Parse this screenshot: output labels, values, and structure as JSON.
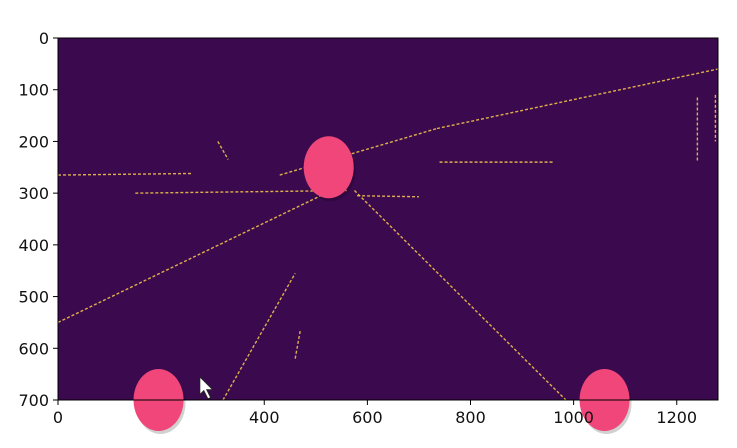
{
  "colors": {
    "background": "#3b0a4e",
    "edge": "#f0c14b",
    "marker": "#f0467a",
    "cursor": "#ffffff"
  },
  "chart_data": {
    "type": "image",
    "xlim": [
      0,
      1280
    ],
    "ylim": [
      700,
      0
    ],
    "x_ticks": [
      {
        "value": 0,
        "label": "0"
      },
      {
        "value": 400,
        "label": "400"
      },
      {
        "value": 600,
        "label": "600"
      },
      {
        "value": 800,
        "label": "800"
      },
      {
        "value": 1000,
        "label": "1000"
      },
      {
        "value": 1200,
        "label": "1200"
      }
    ],
    "y_ticks": [
      {
        "value": 0,
        "label": "0"
      },
      {
        "value": 100,
        "label": "100"
      },
      {
        "value": 200,
        "label": "200"
      },
      {
        "value": 300,
        "label": "300"
      },
      {
        "value": 400,
        "label": "400"
      },
      {
        "value": 500,
        "label": "500"
      },
      {
        "value": 600,
        "label": "600"
      },
      {
        "value": 700,
        "label": "700"
      }
    ],
    "markers": [
      {
        "x": 525,
        "y": 250
      },
      {
        "x": 195,
        "y": 700
      },
      {
        "x": 1060,
        "y": 700
      }
    ],
    "edge_segments": [
      {
        "x1": 0,
        "y1": 550,
        "x2": 520,
        "y2": 300
      },
      {
        "x1": 575,
        "y1": 295,
        "x2": 985,
        "y2": 700
      },
      {
        "x1": 320,
        "y1": 700,
        "x2": 460,
        "y2": 455
      },
      {
        "x1": 0,
        "y1": 265,
        "x2": 260,
        "y2": 262
      },
      {
        "x1": 430,
        "y1": 265,
        "x2": 735,
        "y2": 175
      },
      {
        "x1": 735,
        "y1": 175,
        "x2": 1280,
        "y2": 60
      },
      {
        "x1": 150,
        "y1": 300,
        "x2": 560,
        "y2": 295
      },
      {
        "x1": 1240,
        "y1": 115,
        "x2": 1240,
        "y2": 240
      },
      {
        "x1": 1275,
        "y1": 110,
        "x2": 1275,
        "y2": 200
      },
      {
        "x1": 580,
        "y1": 305,
        "x2": 700,
        "y2": 307
      },
      {
        "x1": 460,
        "y1": 620,
        "x2": 470,
        "y2": 565
      },
      {
        "x1": 310,
        "y1": 200,
        "x2": 330,
        "y2": 235
      },
      {
        "x1": 740,
        "y1": 240,
        "x2": 960,
        "y2": 240
      }
    ],
    "cursor": {
      "x": 275,
      "y": 655
    }
  }
}
